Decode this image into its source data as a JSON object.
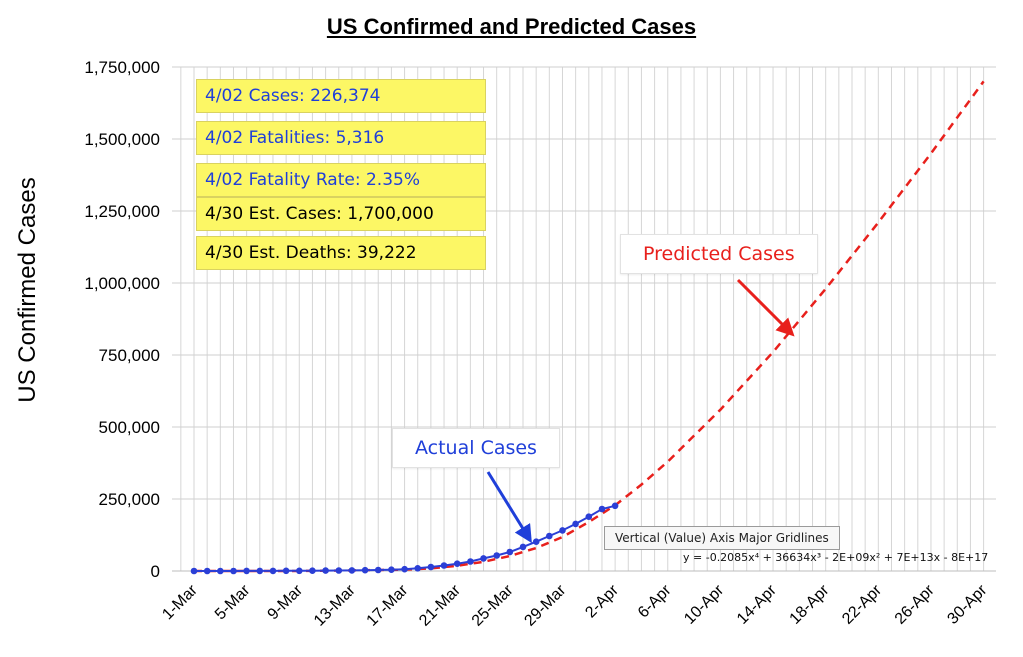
{
  "chart_data": {
    "type": "line",
    "title": "US Confirmed and Predicted Cases",
    "ylabel": "US Confirmed Cases",
    "xlabel": "",
    "ylim": [
      0,
      1750000
    ],
    "y_ticks": [
      0,
      250000,
      500000,
      750000,
      1000000,
      1250000,
      1500000,
      1750000
    ],
    "y_tick_labels": [
      "0",
      "250,000",
      "500,000",
      "750,000",
      "1,000,000",
      "1,250,000",
      "1,500,000",
      "1,750,000"
    ],
    "x_tick_labels": [
      "1-Mar",
      "5-Mar",
      "9-Mar",
      "13-Mar",
      "17-Mar",
      "21-Mar",
      "25-Mar",
      "29-Mar",
      "2-Apr",
      "6-Apr",
      "10-Apr",
      "14-Apr",
      "18-Apr",
      "22-Apr",
      "26-Apr",
      "30-Apr"
    ],
    "grid": true,
    "series": [
      {
        "name": "Actual Cases",
        "color": "#2b3fd6",
        "style": "line-markers",
        "x": [
          "1-Mar",
          "2-Mar",
          "3-Mar",
          "4-Mar",
          "5-Mar",
          "6-Mar",
          "7-Mar",
          "8-Mar",
          "9-Mar",
          "10-Mar",
          "11-Mar",
          "12-Mar",
          "13-Mar",
          "14-Mar",
          "15-Mar",
          "16-Mar",
          "17-Mar",
          "18-Mar",
          "19-Mar",
          "20-Mar",
          "21-Mar",
          "22-Mar",
          "23-Mar",
          "24-Mar",
          "25-Mar",
          "26-Mar",
          "27-Mar",
          "28-Mar",
          "29-Mar",
          "30-Mar",
          "31-Mar",
          "1-Apr",
          "2-Apr"
        ],
        "values": [
          0,
          100,
          120,
          150,
          220,
          320,
          430,
          550,
          750,
          1000,
          1300,
          1700,
          2200,
          2900,
          3500,
          4600,
          6400,
          9400,
          14000,
          19000,
          25500,
          33000,
          43700,
          53700,
          65800,
          83800,
          101700,
          121500,
          140900,
          163500,
          188500,
          215300,
          226374
        ]
      },
      {
        "name": "Predicted Cases",
        "color": "#e8201c",
        "style": "dashed",
        "x": [
          "1-Mar",
          "5-Mar",
          "9-Mar",
          "13-Mar",
          "17-Mar",
          "19-Mar",
          "21-Mar",
          "23-Mar",
          "25-Mar",
          "27-Mar",
          "29-Mar",
          "31-Mar",
          "2-Apr",
          "4-Apr",
          "6-Apr",
          "10-Apr",
          "14-Apr",
          "18-Apr",
          "22-Apr",
          "26-Apr",
          "30-Apr"
        ],
        "values": [
          0,
          0,
          0,
          2000,
          5000,
          9000,
          18000,
          32000,
          52000,
          80000,
          118000,
          170000,
          228000,
          300000,
          380000,
          560000,
          760000,
          980000,
          1210000,
          1450000,
          1700000
        ]
      }
    ],
    "annotations": {
      "info_boxes": [
        {
          "text": "4/02 Cases: 226,374",
          "color": "#1f3fd9"
        },
        {
          "text": "4/02 Fatalities: 5,316",
          "color": "#1f3fd9"
        },
        {
          "text": "4/02 Fatality Rate: 2.35%",
          "color": "#1f3fd9"
        },
        {
          "text": "4/30 Est. Cases: 1,700,000",
          "color": "#000000"
        },
        {
          "text": "4/30 Est. Deaths: 39,222",
          "color": "#000000"
        }
      ],
      "actual_callout": "Actual Cases",
      "predicted_callout": "Predicted Cases",
      "tooltip": "Vertical (Value) Axis Major Gridlines",
      "equation": "y = -0.2085x⁴ + 36634x³ - 2E+09x² + 7E+13x - 8E+17"
    }
  }
}
